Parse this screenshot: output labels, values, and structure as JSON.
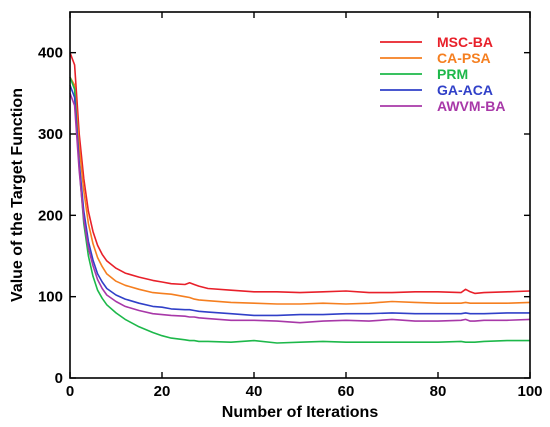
{
  "chart_data": {
    "type": "line",
    "title": "",
    "xlabel": "Number of Iterations",
    "ylabel": "Value of the Target Function",
    "xlim": [
      0,
      100
    ],
    "ylim": [
      0,
      450
    ],
    "xticks": [
      0,
      20,
      40,
      60,
      80,
      100
    ],
    "yticks": [
      0,
      100,
      200,
      300,
      400
    ],
    "legend_position": "top-right",
    "grid": false,
    "x": [
      0,
      1,
      2,
      3,
      4,
      5,
      6,
      7,
      8,
      10,
      12,
      15,
      18,
      20,
      22,
      25,
      26,
      27,
      28,
      30,
      35,
      40,
      45,
      50,
      55,
      60,
      65,
      70,
      75,
      80,
      85,
      86,
      87,
      88,
      90,
      95,
      100
    ],
    "series": [
      {
        "name": "MSC-BA",
        "color": "#e8202a",
        "values": [
          400,
          385,
          300,
          245,
          205,
          180,
          163,
          152,
          144,
          135,
          129,
          124,
          120,
          118,
          116,
          115,
          117,
          115,
          113,
          110,
          108,
          106,
          106,
          105,
          106,
          107,
          105,
          105,
          106,
          106,
          105,
          109,
          106,
          104,
          105,
          106,
          107
        ]
      },
      {
        "name": "CA-PSA",
        "color": "#f57f20",
        "values": [
          370,
          360,
          285,
          230,
          190,
          165,
          148,
          137,
          128,
          119,
          114,
          109,
          105,
          104,
          103,
          100,
          99,
          97,
          96,
          95,
          93,
          92,
          91,
          91,
          92,
          91,
          92,
          94,
          93,
          92,
          92,
          93,
          92,
          92,
          92,
          92,
          93
        ]
      },
      {
        "name": "PRM",
        "color": "#1db84a",
        "values": [
          370,
          355,
          260,
          190,
          150,
          125,
          108,
          98,
          90,
          80,
          72,
          63,
          56,
          52,
          49,
          47,
          46,
          46,
          45,
          45,
          44,
          46,
          43,
          44,
          45,
          44,
          44,
          44,
          44,
          44,
          45,
          44,
          44,
          44,
          45,
          46,
          46
        ]
      },
      {
        "name": "GA-ACA",
        "color": "#3040c8",
        "values": [
          360,
          345,
          265,
          205,
          168,
          145,
          128,
          118,
          110,
          102,
          97,
          92,
          88,
          87,
          85,
          84,
          84,
          83,
          82,
          81,
          79,
          77,
          77,
          78,
          78,
          79,
          79,
          80,
          79,
          79,
          79,
          80,
          79,
          79,
          79,
          80,
          80
        ]
      },
      {
        "name": "AWVM-BA",
        "color": "#a838a8",
        "values": [
          350,
          335,
          255,
          195,
          160,
          138,
          121,
          110,
          102,
          94,
          88,
          83,
          79,
          78,
          77,
          76,
          75,
          75,
          74,
          73,
          71,
          71,
          70,
          68,
          70,
          71,
          70,
          72,
          70,
          70,
          71,
          72,
          70,
          70,
          71,
          71,
          72
        ]
      }
    ]
  }
}
